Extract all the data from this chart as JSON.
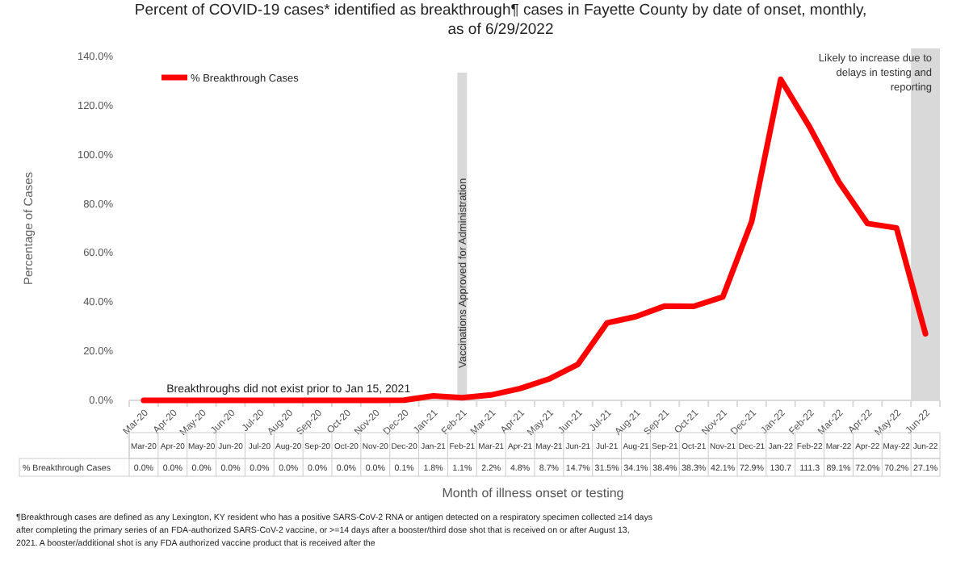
{
  "chart_data": {
    "type": "line",
    "title": "Percent of COVID-19 cases* identified as breakthrough¶ cases in Fayette County by date of onset, monthly, as of 6/29/2022",
    "xlabel": "Month of illness onset or testing",
    "ylabel": "Percentage of Cases",
    "categories": [
      "Mar-20",
      "Apr-20",
      "May-20",
      "Jun-20",
      "Jul-20",
      "Aug-20",
      "Sep-20",
      "Oct-20",
      "Nov-20",
      "Dec-20",
      "Jan-21",
      "Feb-21",
      "Mar-21",
      "Apr-21",
      "May-21",
      "Jun-21",
      "Jul-21",
      "Aug-21",
      "Sep-21",
      "Oct-21",
      "Nov-21",
      "Dec-21",
      "Jan-22",
      "Feb-22",
      "Mar-22",
      "Apr-22",
      "May-22",
      "Jun-22"
    ],
    "series": [
      {
        "name": "% Breakthrough Cases",
        "color": "#ff0000",
        "values": [
          0,
          0,
          0,
          0,
          0,
          0,
          0,
          0,
          0,
          0.1,
          1.8,
          1.1,
          2.2,
          4.8,
          8.7,
          14.7,
          31.5,
          34.1,
          38.4,
          38.3,
          42.1,
          72.9,
          130.7,
          111.3,
          89.1,
          72.0,
          70.2,
          27.1
        ],
        "value_labels": [
          "0.0%",
          "0.0%",
          "0.0%",
          "0.0%",
          "0.0%",
          "0.0%",
          "0.0%",
          "0.0%",
          "0.0%",
          "0.1%",
          "1.8%",
          "1.1%",
          "2.2%",
          "4.8%",
          "8.7%",
          "14.7%",
          "31.5%",
          "34.1%",
          "38.4%",
          "38.3%",
          "42.1%",
          "72.9%",
          "130.7",
          "111.3",
          "89.1%",
          "72.0%",
          "70.2%",
          "27.1%"
        ]
      }
    ],
    "ylim": [
      0,
      140
    ],
    "yticks": [
      {
        "value": 0,
        "label": "0.0%"
      },
      {
        "value": 20,
        "label": "20.0%"
      },
      {
        "value": 40,
        "label": "40.0%"
      },
      {
        "value": 60,
        "label": "60.0%"
      },
      {
        "value": 80,
        "label": "80.0%"
      },
      {
        "value": 100,
        "label": "100.0%"
      },
      {
        "value": 120,
        "label": "120.0%"
      },
      {
        "value": 140,
        "label": "140.0%"
      }
    ],
    "bands": [
      {
        "axis": "x",
        "from": "Feb-21",
        "to": "Feb-21",
        "label": "Vaccinations Approved for Administration",
        "color": "#d9d9d9"
      },
      {
        "axis": "x",
        "from": "Jun-22",
        "to": "Jun-22",
        "label": "Likely to increase due to delays in testing and reporting",
        "color": "#d9d9d9"
      }
    ],
    "annotations": [
      {
        "text": "Breakthroughs did not exist prior to Jan 15, 2021"
      },
      {
        "text": "¶Breakthrough cases are defined as any Lexington, KY resident who has a positive SARS-CoV-2 RNA or antigen detected on a respiratory specimen collected ≥14 days after completing the primary series of an FDA-authorized SARS-CoV-2 vaccine, or >=14 days after a booster/third dose shot that is received on or after August 13, 2021.  A booster/additional shot is any FDA authorized vaccine product that is received after the"
      }
    ],
    "legend": "top left",
    "marker": "none",
    "line_style": "solid"
  }
}
